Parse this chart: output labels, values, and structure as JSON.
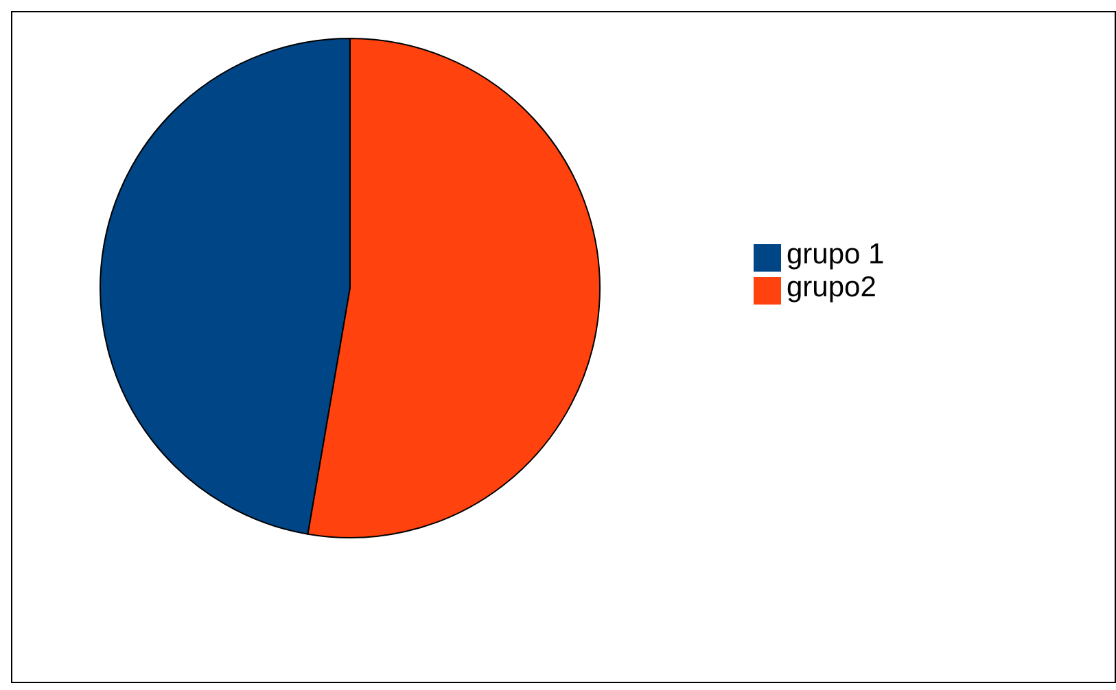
{
  "chart_data": {
    "type": "pie",
    "categories": [
      "grupo 1",
      "grupo2"
    ],
    "values": [
      47.3,
      52.7
    ],
    "colors": [
      "#004586",
      "#ff420e"
    ],
    "legend": "right"
  }
}
